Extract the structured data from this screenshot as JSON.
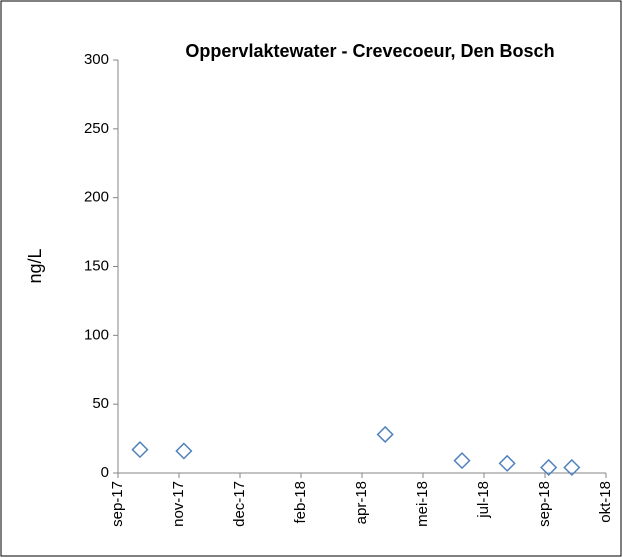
{
  "chart_data": {
    "type": "scatter",
    "title": "Oppervlaktewater - Crevecoeur, Den Bosch",
    "ylabel": "ng/L",
    "x": [
      43013,
      43049,
      43214,
      43277,
      43314,
      43348,
      43367
    ],
    "values": [
      17,
      16,
      28,
      9,
      7,
      4,
      4
    ],
    "color": "#4f81bd",
    "marker": "diamond",
    "xlim": [
      42995,
      43395
    ],
    "xticks": [
      {
        "value": 42995,
        "label": "sep-17"
      },
      {
        "value": 43045,
        "label": "nov-17"
      },
      {
        "value": 43095,
        "label": "dec-17"
      },
      {
        "value": 43145,
        "label": "feb-18"
      },
      {
        "value": 43195,
        "label": "apr-18"
      },
      {
        "value": 43245,
        "label": "mei-18"
      },
      {
        "value": 43295,
        "label": "jul-18"
      },
      {
        "value": 43345,
        "label": "sep-18"
      },
      {
        "value": 43395,
        "label": "okt-18"
      }
    ],
    "ylim": [
      0,
      300
    ],
    "yticks": [
      0,
      50,
      100,
      150,
      200,
      250,
      300
    ],
    "grid": false
  }
}
